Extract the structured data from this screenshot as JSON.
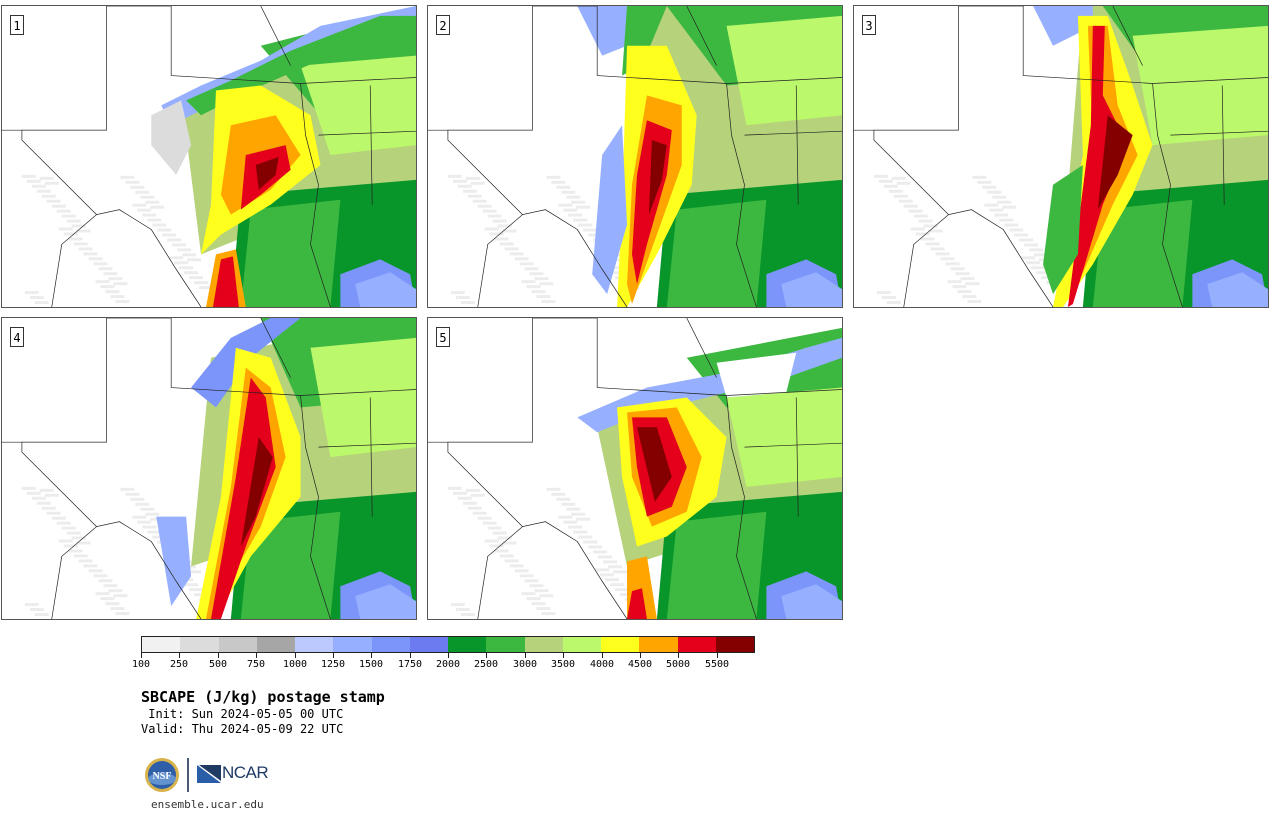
{
  "panels": [
    {
      "label": "1",
      "line_shift": 0,
      "style": "A"
    },
    {
      "label": "2",
      "line_shift": 0,
      "style": "B"
    },
    {
      "label": "3",
      "line_shift": 0,
      "style": "C"
    },
    {
      "label": "4",
      "line_shift": 0,
      "style": "D"
    },
    {
      "label": "5",
      "line_shift": 0,
      "style": "E"
    }
  ],
  "colorbar": {
    "colors": [
      "#f1f1f1",
      "#dcdcdc",
      "#c8c8c8",
      "#a6a6a6",
      "#bcc9ff",
      "#96b0ff",
      "#7b95fb",
      "#6c7cf0",
      "#08962a",
      "#3cb840",
      "#b6d27a",
      "#bcf86c",
      "#ffff1e",
      "#ffa500",
      "#e4001a",
      "#840000"
    ],
    "tick_labels": [
      "100",
      "250",
      "500",
      "750",
      "1000",
      "1250",
      "1500",
      "1750",
      "2000",
      "2500",
      "3000",
      "3500",
      "4000",
      "4500",
      "5000",
      "5500"
    ]
  },
  "title": "SBCAPE (J/kg) postage stamp",
  "init": " Init: Sun 2024-05-05 00 UTC",
  "valid": "Valid: Thu 2024-05-09 22 UTC",
  "logos": {
    "nsf": "NSF",
    "ncar": "NCAR"
  },
  "footer_url": "ensemble.ucar.edu"
}
